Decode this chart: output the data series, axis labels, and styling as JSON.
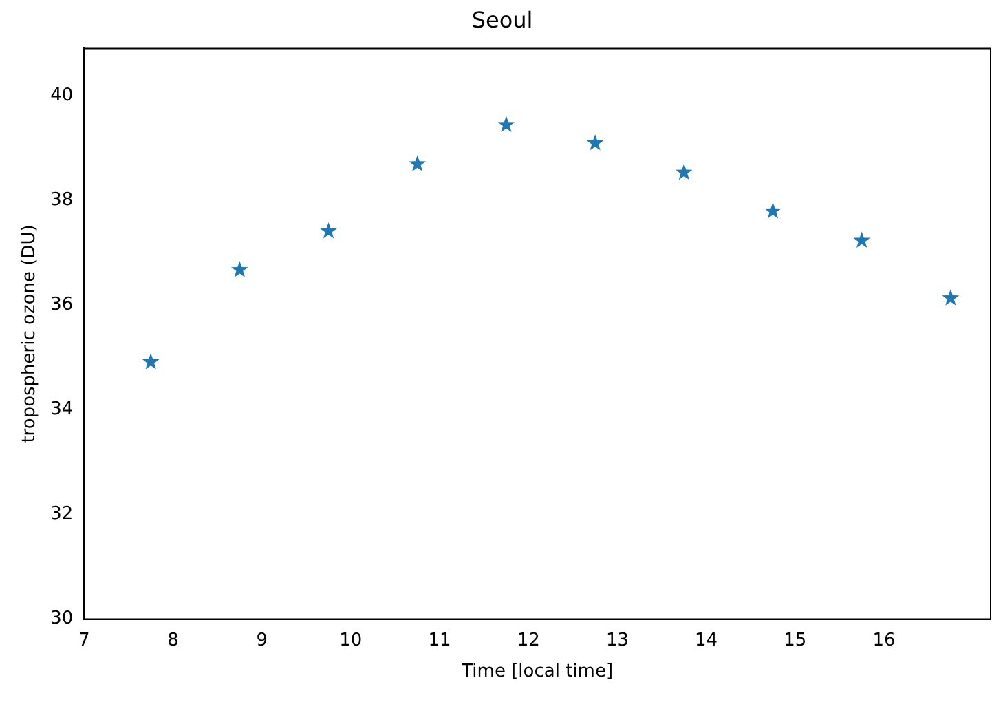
{
  "chart_data": {
    "type": "scatter",
    "title": "Seoul",
    "xlabel": "Time [local time]",
    "ylabel": "tropospheric ozone (DU)",
    "x": [
      7.75,
      8.75,
      9.75,
      10.75,
      11.75,
      12.75,
      13.75,
      14.75,
      15.75,
      16.75
    ],
    "series": [
      {
        "color": "#1f77b4",
        "values": [
          34.91,
          36.67,
          37.41,
          38.69,
          39.44,
          39.09,
          38.53,
          37.79,
          37.23,
          36.13
        ]
      }
    ],
    "xlim": [
      7,
      17.2
    ],
    "xticks": [
      7,
      8,
      9,
      10,
      11,
      12,
      13,
      14,
      15,
      16
    ],
    "ylim": [
      30,
      40.9
    ],
    "yticks": [
      30,
      32,
      34,
      36,
      38,
      40
    ],
    "marker": "star",
    "grid": false,
    "legend": false
  }
}
